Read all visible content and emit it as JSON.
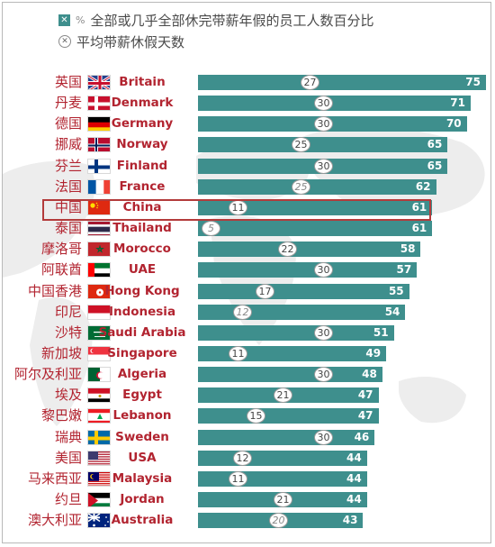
{
  "legend": {
    "pct_mark": "%",
    "pct_label": "全部或几乎全部休完带薪年假的员工人数百分比",
    "days_label": "平均带薪休假天数"
  },
  "colors": {
    "bar": "#3e8f8d",
    "label_red": "#b22430",
    "highlight_box": "#b33b3b"
  },
  "chart_data": {
    "type": "bar",
    "orientation": "horizontal",
    "series": [
      {
        "name": "全部或几乎全部休完带薪年假的员工人数百分比",
        "key": "pct"
      },
      {
        "name": "平均带薪休假天数",
        "key": "days"
      }
    ],
    "xlim": [
      0,
      75
    ],
    "highlight": "China",
    "rows": [
      {
        "cn": "英国",
        "en": "Britain",
        "flag": "gb",
        "days": 27,
        "pct": 75
      },
      {
        "cn": "丹麦",
        "en": "Denmark",
        "flag": "dk",
        "days": 30,
        "pct": 71
      },
      {
        "cn": "德国",
        "en": "Germany",
        "flag": "de",
        "days": 30,
        "pct": 70
      },
      {
        "cn": "挪威",
        "en": "Norway",
        "flag": "no",
        "days": 25,
        "pct": 65
      },
      {
        "cn": "芬兰",
        "en": "Finland",
        "flag": "fi",
        "days": 30,
        "pct": 65
      },
      {
        "cn": "法国",
        "en": "France",
        "flag": "fr",
        "days": 25,
        "pct": 62
      },
      {
        "cn": "中国",
        "en": "China",
        "flag": "cn",
        "days": 11,
        "pct": 61
      },
      {
        "cn": "泰国",
        "en": "Thailand",
        "flag": "th",
        "days": 5,
        "pct": 61
      },
      {
        "cn": "摩洛哥",
        "en": "Morocco",
        "flag": "ma",
        "days": 22,
        "pct": 58
      },
      {
        "cn": "阿联酋",
        "en": "UAE",
        "flag": "ae",
        "days": 30,
        "pct": 57
      },
      {
        "cn": "中国香港",
        "en": "Hong Kong",
        "flag": "hk",
        "days": 17,
        "pct": 55
      },
      {
        "cn": "印尼",
        "en": "Indonesia",
        "flag": "id",
        "days": 12,
        "pct": 54
      },
      {
        "cn": "沙特",
        "en": "Saudi Arabia",
        "flag": "sa",
        "days": 30,
        "pct": 51
      },
      {
        "cn": "新加坡",
        "en": "Singapore",
        "flag": "sg",
        "days": 11,
        "pct": 49
      },
      {
        "cn": "阿尔及利亚",
        "en": "Algeria",
        "flag": "dz",
        "days": 30,
        "pct": 48
      },
      {
        "cn": "埃及",
        "en": "Egypt",
        "flag": "eg",
        "days": 21,
        "pct": 47
      },
      {
        "cn": "黎巴嫩",
        "en": "Lebanon",
        "flag": "lb",
        "days": 15,
        "pct": 47
      },
      {
        "cn": "瑞典",
        "en": "Sweden",
        "flag": "se",
        "days": 30,
        "pct": 46
      },
      {
        "cn": "美国",
        "en": "USA",
        "flag": "us",
        "days": 12,
        "pct": 44
      },
      {
        "cn": "马来西亚",
        "en": "Malaysia",
        "flag": "my",
        "days": 11,
        "pct": 44
      },
      {
        "cn": "约旦",
        "en": "Jordan",
        "flag": "jo",
        "days": 21,
        "pct": 44
      },
      {
        "cn": "澳大利亚",
        "en": "Australia",
        "flag": "au",
        "days": 20,
        "pct": 43
      }
    ]
  }
}
